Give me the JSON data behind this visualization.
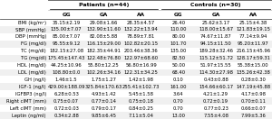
{
  "title_patients": "Patients (n=44)",
  "title_controls": "Controls (n=30)",
  "col_headers": [
    "GG",
    "GA",
    "AA",
    "GG",
    "GA",
    "AA"
  ],
  "row_labels": [
    "BMI (kg/m²)",
    "SBP (mmHg)",
    "DBP (mmHg)",
    "FG (mg/dl)",
    "TC (mg/dl)",
    "TG (mg/dl)",
    "HDL (mg/dl)",
    "LDL (mg/dl)",
    "GH (ng/l)",
    "IGF-1 (ng/l)",
    "IGFBP3 (ng/l)",
    "Right cIMT (mm)",
    "Left cIMT (mm)",
    "Leptin (ng/ml)"
  ],
  "cell_data": [
    [
      "35.15±2.19",
      "29.08±1.66",
      "28.35±4.57",
      "26.40",
      "25.62±3.17",
      "25.15±4.38"
    ],
    [
      "135.00±7.07",
      "132.90±11.60",
      "132.22±13.94",
      "110.00",
      "118.00±15.67",
      "121.83±19.15"
    ],
    [
      "85.00±7.07",
      "82.08±5.88",
      "78.89±7.81",
      "80.00",
      "74.67±11.87",
      "77.14±9.94"
    ],
    [
      "95.55±9.12",
      "116.15±29.00",
      "102.82±20.15",
      "101.70",
      "94.15±11.50",
      "95.20±11.97"
    ],
    [
      "182.15±27.08",
      "182.35±44.91",
      "203.46±38.36",
      "135.00",
      "189.28±32.46",
      "216.15±45.96"
    ],
    [
      "175.45±147.43",
      "122.48±76.80",
      "122.97±68.60",
      "82.50",
      "115.12±51.72",
      "128.17±59.31"
    ],
    [
      "44.25±10.96",
      "55.80±12.25",
      "56.80±16.99",
      "50.00",
      "51.97±15.55",
      "55.38±15.00"
    ],
    [
      "108.80±0.0",
      "102.26±34.16",
      "122.31±34.25",
      "68.40",
      "114.30±27.98",
      "135.26±42.38"
    ],
    [
      "1.46±1.5",
      "1.75±1.27",
      "1.42±1.98",
      "0.10",
      "0.43±0.88",
      "0.28±0.30"
    ],
    [
      "429.00±188.09",
      "325.84±170.63",
      "255.41±102.73",
      "161.00",
      "154.66±60.17",
      "147.19±45.88"
    ],
    [
      "6.28±0.53",
      "4.93±1.42",
      "5.45±1.58",
      "3.64",
      "4.21±1.29",
      "4.17±0.98"
    ],
    [
      "0.75±0.07",
      "0.77±0.14",
      "0.75±0.18",
      "0.70",
      "0.72±0.19",
      "0.70±0.11"
    ],
    [
      "0.72±0.03",
      "0.79±0.17",
      "0.84±0.25",
      "0.70",
      "0.77±0.23",
      "0.66±0.07"
    ],
    [
      "0.34±2.88",
      "9.85±6.45",
      "7.11±5.04",
      "13.00",
      "7.55±4.08",
      "7.99±5.36"
    ]
  ],
  "bg_color": "#ffffff",
  "line_color": "#aaaaaa",
  "text_color": "#000000",
  "header_line_color": "#555555",
  "font_size": 3.8,
  "header_font_size": 4.2,
  "group_font_size": 4.5
}
